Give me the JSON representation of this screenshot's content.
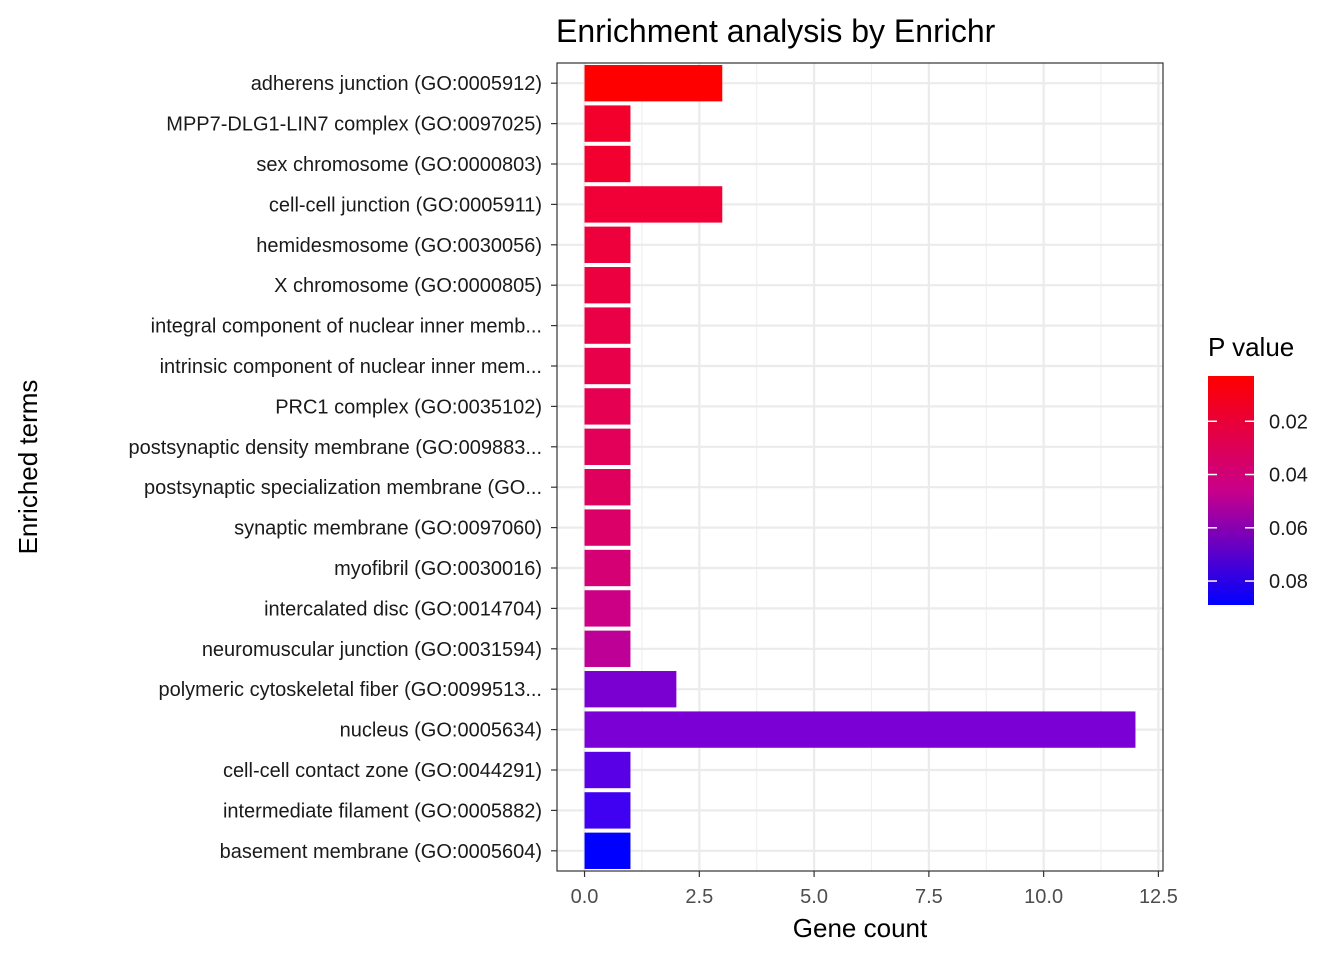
{
  "chart_data": {
    "type": "bar",
    "orientation": "horizontal",
    "title": "Enrichment analysis by Enrichr",
    "xlabel": "Gene count",
    "ylabel": "Enriched terms",
    "xlim": [
      -0.6,
      12.6
    ],
    "x_ticks": [
      0,
      2.5,
      5,
      7.5,
      10,
      12.5
    ],
    "x_tick_labels": [
      "0.0",
      "2.5",
      "5.0",
      "7.5",
      "10.0",
      "12.5"
    ],
    "grid": true,
    "categories": [
      "adherens junction (GO:0005912)",
      "MPP7-DLG1-LIN7 complex (GO:0097025)",
      "sex chromosome (GO:0000803)",
      "cell-cell junction (GO:0005911)",
      "hemidesmosome (GO:0030056)",
      "X chromosome (GO:0000805)",
      "integral component of nuclear inner memb...",
      "intrinsic component of nuclear inner mem...",
      "PRC1 complex (GO:0035102)",
      "postsynaptic density membrane (GO:009883...",
      "postsynaptic specialization membrane (GO...",
      "synaptic membrane (GO:0097060)",
      "myofibril (GO:0030016)",
      "intercalated disc (GO:0014704)",
      "neuromuscular junction (GO:0031594)",
      "polymeric cytoskeletal fiber (GO:0099513...",
      "nucleus (GO:0005634)",
      "cell-cell contact zone (GO:0044291)",
      "intermediate filament (GO:0005882)",
      "basement membrane (GO:0005604)"
    ],
    "values": [
      3,
      1,
      1,
      3,
      1,
      1,
      1,
      1,
      1,
      1,
      1,
      1,
      1,
      1,
      1,
      2,
      12,
      1,
      1,
      1
    ],
    "p_values": [
      0.004,
      0.015,
      0.016,
      0.018,
      0.02,
      0.022,
      0.025,
      0.026,
      0.029,
      0.032,
      0.034,
      0.038,
      0.042,
      0.046,
      0.052,
      0.062,
      0.065,
      0.075,
      0.08,
      0.088
    ],
    "bar_colors": [
      "#ff0000",
      "#f4002c",
      "#f20030",
      "#f00036",
      "#ee003c",
      "#ec0040",
      "#ea0046",
      "#e8004a",
      "#e50052",
      "#e20058",
      "#df005e",
      "#da0068",
      "#d40074",
      "#cc0084",
      "#bf0096",
      "#7a00d2",
      "#7a00d6",
      "#5a00e6",
      "#4000f2",
      "#0000ff"
    ],
    "legend": {
      "title": "P value",
      "placement": "right",
      "type": "colorbar",
      "range": [
        0.003,
        0.089
      ],
      "ticks": [
        0.02,
        0.04,
        0.06,
        0.08
      ],
      "tick_labels": [
        "0.02",
        "0.04",
        "0.06",
        "0.08"
      ],
      "color_low": "#ff0000",
      "color_high": "#0000ff"
    }
  }
}
